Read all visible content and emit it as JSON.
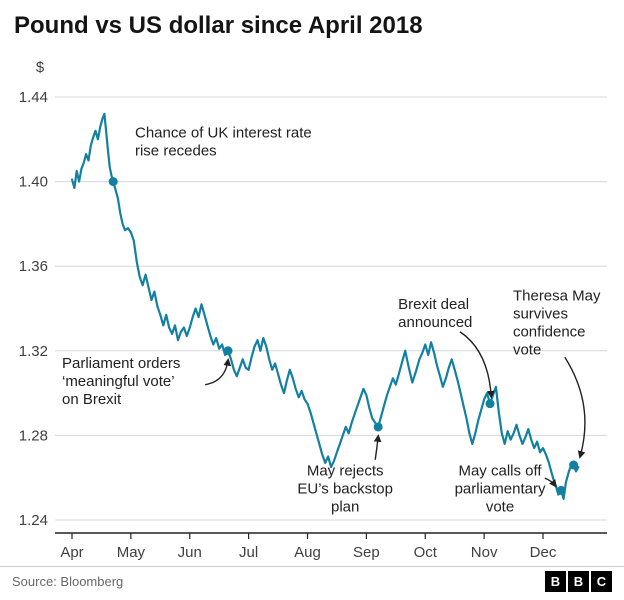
{
  "title": "Pound vs US dollar since April 2018",
  "source": "Source: Bloomberg",
  "logo": {
    "letters": [
      "B",
      "B",
      "C"
    ]
  },
  "chart_data": {
    "type": "line",
    "title": "Pound vs US dollar since April 2018",
    "xlabel": "",
    "ylabel": "$",
    "y_ticks": [
      1.44,
      1.4,
      1.36,
      1.32,
      1.28,
      1.24
    ],
    "ylim": [
      1.24,
      1.44
    ],
    "x_tick_labels": [
      "Apr",
      "May",
      "Jun",
      "Jul",
      "Aug",
      "Sep",
      "Oct",
      "Nov",
      "Dec"
    ],
    "x_domain": [
      0,
      9
    ],
    "x_unit": "months since 1 April 2018",
    "grid": "horizontal",
    "legend": "none",
    "line_color": "#1380A1",
    "series": [
      [
        0.0,
        1.401
      ],
      [
        0.04,
        1.397
      ],
      [
        0.08,
        1.405
      ],
      [
        0.12,
        1.4
      ],
      [
        0.16,
        1.406
      ],
      [
        0.2,
        1.409
      ],
      [
        0.24,
        1.413
      ],
      [
        0.28,
        1.41
      ],
      [
        0.32,
        1.417
      ],
      [
        0.36,
        1.421
      ],
      [
        0.4,
        1.424
      ],
      [
        0.44,
        1.42
      ],
      [
        0.48,
        1.426
      ],
      [
        0.52,
        1.43
      ],
      [
        0.55,
        1.432
      ],
      [
        0.58,
        1.424
      ],
      [
        0.61,
        1.415
      ],
      [
        0.64,
        1.407
      ],
      [
        0.67,
        1.403
      ],
      [
        0.7,
        1.4
      ],
      [
        0.74,
        1.396
      ],
      [
        0.78,
        1.392
      ],
      [
        0.82,
        1.385
      ],
      [
        0.86,
        1.38
      ],
      [
        0.9,
        1.377
      ],
      [
        0.95,
        1.378
      ],
      [
        1.0,
        1.376
      ],
      [
        1.05,
        1.372
      ],
      [
        1.1,
        1.362
      ],
      [
        1.15,
        1.355
      ],
      [
        1.2,
        1.351
      ],
      [
        1.25,
        1.356
      ],
      [
        1.3,
        1.35
      ],
      [
        1.35,
        1.344
      ],
      [
        1.4,
        1.348
      ],
      [
        1.45,
        1.341
      ],
      [
        1.5,
        1.337
      ],
      [
        1.55,
        1.332
      ],
      [
        1.6,
        1.337
      ],
      [
        1.65,
        1.331
      ],
      [
        1.7,
        1.328
      ],
      [
        1.75,
        1.332
      ],
      [
        1.8,
        1.325
      ],
      [
        1.85,
        1.329
      ],
      [
        1.9,
        1.331
      ],
      [
        1.95,
        1.327
      ],
      [
        2.0,
        1.331
      ],
      [
        2.05,
        1.336
      ],
      [
        2.1,
        1.34
      ],
      [
        2.15,
        1.336
      ],
      [
        2.2,
        1.342
      ],
      [
        2.25,
        1.337
      ],
      [
        2.3,
        1.332
      ],
      [
        2.35,
        1.327
      ],
      [
        2.4,
        1.323
      ],
      [
        2.45,
        1.326
      ],
      [
        2.5,
        1.321
      ],
      [
        2.55,
        1.323
      ],
      [
        2.6,
        1.318
      ],
      [
        2.65,
        1.32
      ],
      [
        2.7,
        1.316
      ],
      [
        2.75,
        1.311
      ],
      [
        2.8,
        1.308
      ],
      [
        2.85,
        1.312
      ],
      [
        2.9,
        1.316
      ],
      [
        2.95,
        1.312
      ],
      [
        3.0,
        1.311
      ],
      [
        3.05,
        1.317
      ],
      [
        3.1,
        1.322
      ],
      [
        3.15,
        1.325
      ],
      [
        3.2,
        1.32
      ],
      [
        3.25,
        1.326
      ],
      [
        3.3,
        1.322
      ],
      [
        3.35,
        1.316
      ],
      [
        3.4,
        1.311
      ],
      [
        3.45,
        1.314
      ],
      [
        3.5,
        1.309
      ],
      [
        3.55,
        1.304
      ],
      [
        3.6,
        1.3
      ],
      [
        3.65,
        1.306
      ],
      [
        3.7,
        1.311
      ],
      [
        3.75,
        1.307
      ],
      [
        3.8,
        1.302
      ],
      [
        3.85,
        1.298
      ],
      [
        3.9,
        1.301
      ],
      [
        3.95,
        1.297
      ],
      [
        4.0,
        1.295
      ],
      [
        4.05,
        1.291
      ],
      [
        4.1,
        1.286
      ],
      [
        4.15,
        1.281
      ],
      [
        4.2,
        1.276
      ],
      [
        4.25,
        1.271
      ],
      [
        4.3,
        1.267
      ],
      [
        4.35,
        1.27
      ],
      [
        4.4,
        1.265
      ],
      [
        4.45,
        1.268
      ],
      [
        4.5,
        1.272
      ],
      [
        4.55,
        1.276
      ],
      [
        4.6,
        1.28
      ],
      [
        4.65,
        1.284
      ],
      [
        4.7,
        1.281
      ],
      [
        4.75,
        1.286
      ],
      [
        4.8,
        1.29
      ],
      [
        4.85,
        1.294
      ],
      [
        4.9,
        1.298
      ],
      [
        4.95,
        1.302
      ],
      [
        5.0,
        1.299
      ],
      [
        5.05,
        1.293
      ],
      [
        5.1,
        1.288
      ],
      [
        5.15,
        1.286
      ],
      [
        5.2,
        1.284
      ],
      [
        5.25,
        1.289
      ],
      [
        5.3,
        1.294
      ],
      [
        5.35,
        1.299
      ],
      [
        5.4,
        1.303
      ],
      [
        5.45,
        1.307
      ],
      [
        5.5,
        1.304
      ],
      [
        5.55,
        1.309
      ],
      [
        5.6,
        1.314
      ],
      [
        5.66,
        1.32
      ],
      [
        5.72,
        1.312
      ],
      [
        5.78,
        1.305
      ],
      [
        5.84,
        1.31
      ],
      [
        5.9,
        1.316
      ],
      [
        5.95,
        1.319
      ],
      [
        6.0,
        1.323
      ],
      [
        6.05,
        1.318
      ],
      [
        6.1,
        1.324
      ],
      [
        6.15,
        1.319
      ],
      [
        6.2,
        1.313
      ],
      [
        6.25,
        1.308
      ],
      [
        6.3,
        1.303
      ],
      [
        6.35,
        1.307
      ],
      [
        6.4,
        1.312
      ],
      [
        6.45,
        1.316
      ],
      [
        6.5,
        1.311
      ],
      [
        6.55,
        1.306
      ],
      [
        6.6,
        1.3
      ],
      [
        6.65,
        1.294
      ],
      [
        6.7,
        1.288
      ],
      [
        6.75,
        1.281
      ],
      [
        6.8,
        1.276
      ],
      [
        6.85,
        1.281
      ],
      [
        6.9,
        1.287
      ],
      [
        6.95,
        1.292
      ],
      [
        7.0,
        1.297
      ],
      [
        7.05,
        1.3
      ],
      [
        7.1,
        1.295
      ],
      [
        7.15,
        1.299
      ],
      [
        7.2,
        1.303
      ],
      [
        7.25,
        1.291
      ],
      [
        7.3,
        1.281
      ],
      [
        7.35,
        1.276
      ],
      [
        7.4,
        1.282
      ],
      [
        7.45,
        1.278
      ],
      [
        7.5,
        1.281
      ],
      [
        7.55,
        1.285
      ],
      [
        7.6,
        1.28
      ],
      [
        7.65,
        1.276
      ],
      [
        7.7,
        1.279
      ],
      [
        7.75,
        1.283
      ],
      [
        7.8,
        1.278
      ],
      [
        7.85,
        1.274
      ],
      [
        7.9,
        1.277
      ],
      [
        7.95,
        1.272
      ],
      [
        8.0,
        1.274
      ],
      [
        8.05,
        1.271
      ],
      [
        8.1,
        1.267
      ],
      [
        8.14,
        1.263
      ],
      [
        8.18,
        1.259
      ],
      [
        8.22,
        1.256
      ],
      [
        8.26,
        1.252
      ],
      [
        8.31,
        1.254
      ],
      [
        8.35,
        1.25
      ],
      [
        8.39,
        1.258
      ],
      [
        8.44,
        1.263
      ],
      [
        8.48,
        1.266
      ],
      [
        8.52,
        1.266
      ],
      [
        8.56,
        1.263
      ],
      [
        8.6,
        1.265
      ]
    ],
    "annotations": [
      {
        "lines": [
          "Chance of UK interest rate",
          "rise recedes"
        ],
        "align": "left",
        "label": {
          "x": 1.07,
          "y": 1.427
        },
        "point": {
          "x": 0.7,
          "y": 1.4
        },
        "arrow": null
      },
      {
        "lines": [
          "Parliament orders",
          "‘meaningful vote’",
          "on Brexit"
        ],
        "align": "left",
        "label": {
          "x": -0.17,
          "y": 1.318
        },
        "point": {
          "x": 2.65,
          "y": 1.32
        },
        "arrow": {
          "x1": 2.26,
          "y1": 1.304,
          "cx": 2.6,
          "cy": 1.3055,
          "x2": 2.65,
          "y2": 1.3155
        }
      },
      {
        "lines": [
          "May rejects",
          "EU’s backstop",
          "plan"
        ],
        "align": "center",
        "label": {
          "x": 4.64,
          "y": 1.2673
        },
        "point": {
          "x": 5.2,
          "y": 1.284
        },
        "arrow": {
          "x1": 5.15,
          "y1": 1.2685,
          "cx": 5.18,
          "cy": 1.274,
          "x2": 5.2,
          "y2": 1.2795
        }
      },
      {
        "lines": [
          "Brexit deal",
          "announced"
        ],
        "align": "left",
        "label": {
          "x": 5.54,
          "y": 1.346
        },
        "point": {
          "x": 7.1,
          "y": 1.295
        },
        "arrow": {
          "x1": 6.59,
          "y1": 1.329,
          "cx": 7.07,
          "cy": 1.32,
          "x2": 7.12,
          "y2": 1.2985
        }
      },
      {
        "lines": [
          "May calls off",
          "parliamentary",
          "vote"
        ],
        "align": "center",
        "label": {
          "x": 7.27,
          "y": 1.2673
        },
        "point": {
          "x": 8.31,
          "y": 1.254
        },
        "arrow": {
          "x1": 8.03,
          "y1": 1.2598,
          "cx": 8.15,
          "cy": 1.2585,
          "x2": 8.21,
          "y2": 1.2562
        }
      },
      {
        "lines": [
          "Theresa May",
          "survives",
          "confidence",
          "vote"
        ],
        "align": "left",
        "label": {
          "x": 7.49,
          "y": 1.35
        },
        "point": {
          "x": 8.52,
          "y": 1.266
        },
        "arrow": {
          "x1": 8.37,
          "y1": 1.317,
          "cx": 8.88,
          "cy": 1.2945,
          "x2": 8.63,
          "y2": 1.27
        }
      }
    ]
  }
}
